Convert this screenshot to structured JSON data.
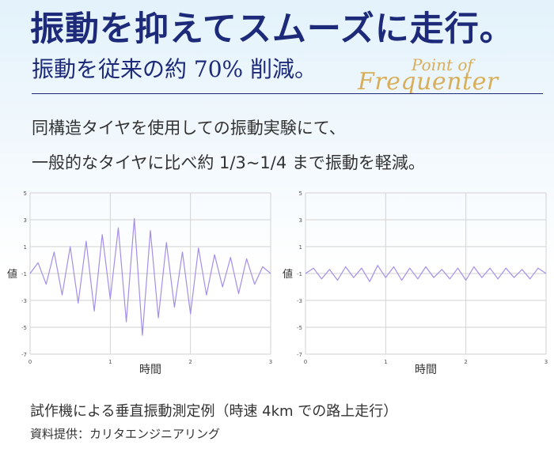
{
  "header": {
    "title": "振動を抑えてスムーズに走行。",
    "subtitle": "振動を従来の約 70% 削減。",
    "logo_line1": "Point of",
    "logo_line2": "Frequenter"
  },
  "body_text": [
    "同構造タイヤを使用しての振動実験にて、",
    "一般的なタイヤに比べ約 1/3~1/4 まで振動を軽減。"
  ],
  "caption": "試作機による垂直振動測定例（時速 4km での路上走行）",
  "credit": "資料提供：カリタエンジニアリング",
  "colors": {
    "series": "#a58ee8",
    "title": "#1d2a7a",
    "logo": "#d8ae5a",
    "grid": "#d2d2d2"
  },
  "chart_data": [
    {
      "type": "line",
      "xlabel": "時間",
      "ylabel": "値",
      "xlim": [
        0,
        3
      ],
      "ylim": [
        -7,
        5
      ],
      "xticks": [
        "0",
        "1",
        "2",
        "3"
      ],
      "yticks": [
        "5",
        "3",
        "1",
        "-1",
        "-3",
        "-5",
        "-7"
      ],
      "grid": true,
      "series": [
        {
          "x": [
            0,
            0.1,
            0.2,
            0.3,
            0.4,
            0.5,
            0.6,
            0.7,
            0.8,
            0.9,
            1.0,
            1.1,
            1.2,
            1.3,
            1.4,
            1.5,
            1.6,
            1.7,
            1.8,
            1.9,
            2.0,
            2.1,
            2.2,
            2.3,
            2.4,
            2.5,
            2.6,
            2.7,
            2.8,
            2.9,
            3.0
          ],
          "y": [
            -1.0,
            -0.2,
            -1.8,
            0.6,
            -2.6,
            1.0,
            -3.2,
            1.4,
            -3.8,
            1.9,
            -2.9,
            2.4,
            -4.6,
            3.1,
            -5.6,
            2.2,
            -4.3,
            1.3,
            -3.5,
            0.6,
            -4.0,
            0.9,
            -2.6,
            0.4,
            -2.0,
            0.2,
            -2.5,
            0.1,
            -1.8,
            -0.5,
            -1.0
          ]
        }
      ]
    },
    {
      "type": "line",
      "xlabel": "時間",
      "ylabel": "値",
      "xlim": [
        0,
        3
      ],
      "ylim": [
        -7,
        5
      ],
      "xticks": [
        "0",
        "1",
        "2",
        "3"
      ],
      "yticks": [
        "5",
        "3",
        "1",
        "-1",
        "-3",
        "-5",
        "-7"
      ],
      "grid": true,
      "series": [
        {
          "x": [
            0,
            0.1,
            0.2,
            0.3,
            0.4,
            0.5,
            0.6,
            0.7,
            0.8,
            0.9,
            1.0,
            1.1,
            1.2,
            1.3,
            1.4,
            1.5,
            1.6,
            1.7,
            1.8,
            1.9,
            2.0,
            2.1,
            2.2,
            2.3,
            2.4,
            2.5,
            2.6,
            2.7,
            2.8,
            2.9,
            3.0
          ],
          "y": [
            -1.0,
            -0.6,
            -1.4,
            -0.7,
            -1.5,
            -0.5,
            -1.3,
            -0.6,
            -1.6,
            -0.4,
            -1.3,
            -0.5,
            -1.5,
            -0.6,
            -1.4,
            -0.5,
            -1.3,
            -0.7,
            -1.4,
            -0.6,
            -1.5,
            -0.5,
            -1.3,
            -0.6,
            -1.4,
            -0.6,
            -1.3,
            -0.7,
            -1.4,
            -0.6,
            -1.0
          ]
        }
      ]
    }
  ]
}
